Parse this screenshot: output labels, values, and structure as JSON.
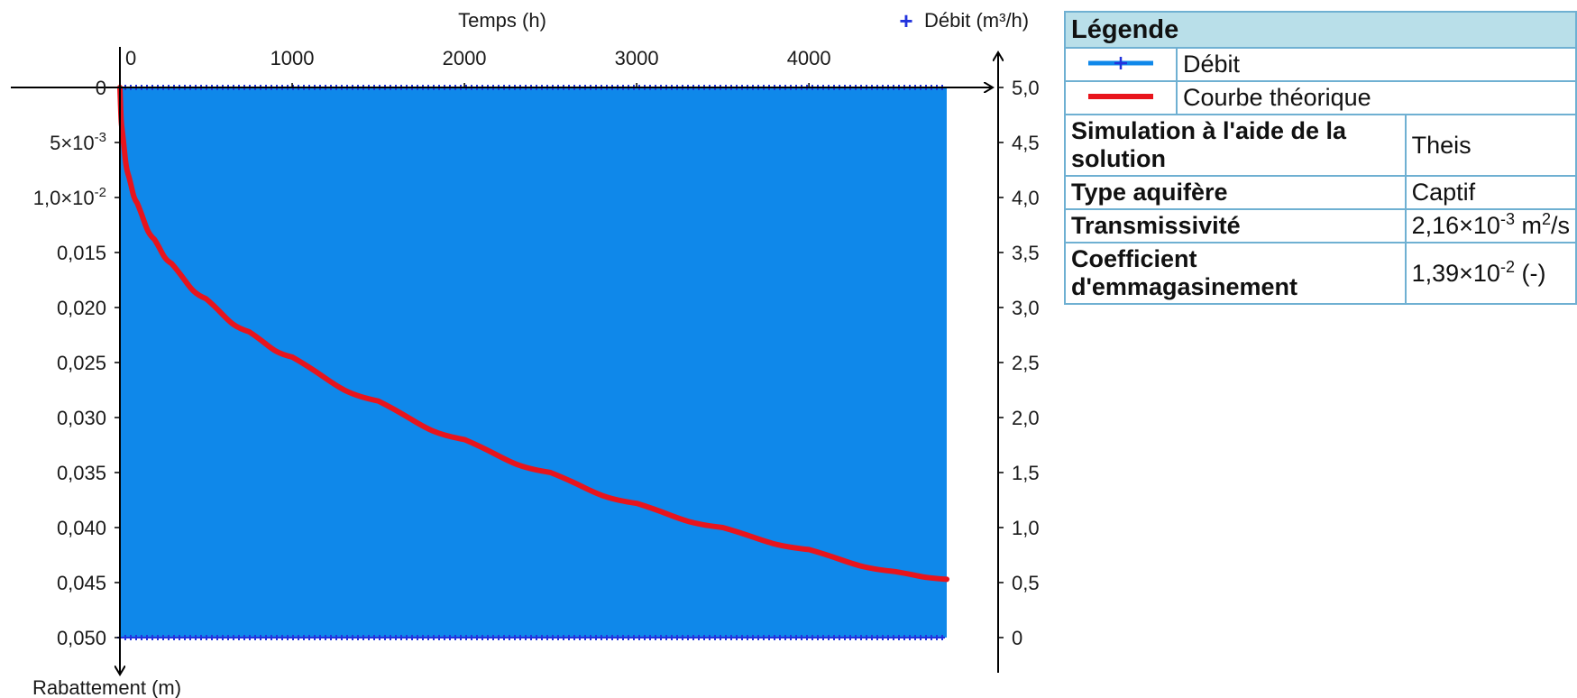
{
  "chart_data": {
    "type": "area",
    "x_axis": {
      "label": "Temps (h)",
      "range": [
        0,
        4800
      ],
      "ticks": [
        "0",
        "1000",
        "2000",
        "3000",
        "4000"
      ],
      "tick_values": [
        0,
        1000,
        2000,
        3000,
        4000
      ],
      "position": "top"
    },
    "y_left": {
      "label": "Rabattement (m)",
      "range": [
        0,
        0.05
      ],
      "inverted": true,
      "tick_values": [
        0,
        0.005,
        0.01,
        0.015,
        0.02,
        0.025,
        0.03,
        0.035,
        0.04,
        0.045,
        0.05
      ],
      "ticks": [
        {
          "base": "0",
          "exp": ""
        },
        {
          "base": "5×10",
          "exp": "-3"
        },
        {
          "base": "1,0×10",
          "exp": "-2"
        },
        {
          "base": "0,015",
          "exp": ""
        },
        {
          "base": "0,020",
          "exp": ""
        },
        {
          "base": "0,025",
          "exp": ""
        },
        {
          "base": "0,030",
          "exp": ""
        },
        {
          "base": "0,035",
          "exp": ""
        },
        {
          "base": "0,040",
          "exp": ""
        },
        {
          "base": "0,045",
          "exp": ""
        },
        {
          "base": "0,050",
          "exp": ""
        }
      ]
    },
    "y_right": {
      "label": "Débit (m³/h)",
      "label_marker": "+",
      "range": [
        0,
        5.0
      ],
      "tick_values": [
        0,
        0.5,
        1.0,
        1.5,
        2.0,
        2.5,
        3.0,
        3.5,
        4.0,
        4.5,
        5.0
      ],
      "ticks": [
        "0",
        "0,5",
        "1,0",
        "1,5",
        "2,0",
        "2,5",
        "3,0",
        "3,5",
        "4,0",
        "4,5",
        "5,0"
      ]
    },
    "series": [
      {
        "name": "Débit",
        "type": "area",
        "axis": "right",
        "color": "#0f88ea",
        "marker_color": "#2233dd",
        "x": [
          0,
          4800
        ],
        "values": [
          5.0,
          5.0
        ]
      },
      {
        "name": "Courbe théorique",
        "type": "line",
        "axis": "left",
        "color": "#e8141c",
        "x": [
          0,
          10,
          50,
          100,
          200,
          300,
          500,
          750,
          1000,
          1500,
          2000,
          2500,
          3000,
          3500,
          4000,
          4500,
          4800
        ],
        "values": [
          0,
          0.0035,
          0.008,
          0.0105,
          0.0138,
          0.016,
          0.0192,
          0.0222,
          0.0245,
          0.0285,
          0.032,
          0.035,
          0.0378,
          0.04,
          0.042,
          0.044,
          0.0447
        ]
      }
    ],
    "grid": false
  },
  "legend": {
    "title": "Légende",
    "items": [
      {
        "label": "Débit",
        "color": "#0f88ea",
        "marker": "+"
      },
      {
        "label": "Courbe théorique",
        "color": "#e8141c",
        "marker": ""
      }
    ]
  },
  "parameters": [
    {
      "label": "Simulation à l'aide de la solution",
      "value": "Theis"
    },
    {
      "label": "Type aquifère",
      "value": "Captif"
    },
    {
      "label": "Transmissivité",
      "value_base": "2,16×10",
      "value_exp": "-3",
      "value_unit": " m",
      "value_unit_exp": "2",
      "value_tail": "/s"
    },
    {
      "label": "Coefficient d'emmagasinement",
      "value_base": "1,39×10",
      "value_exp": "-2",
      "value_tail": " (-)"
    }
  ]
}
